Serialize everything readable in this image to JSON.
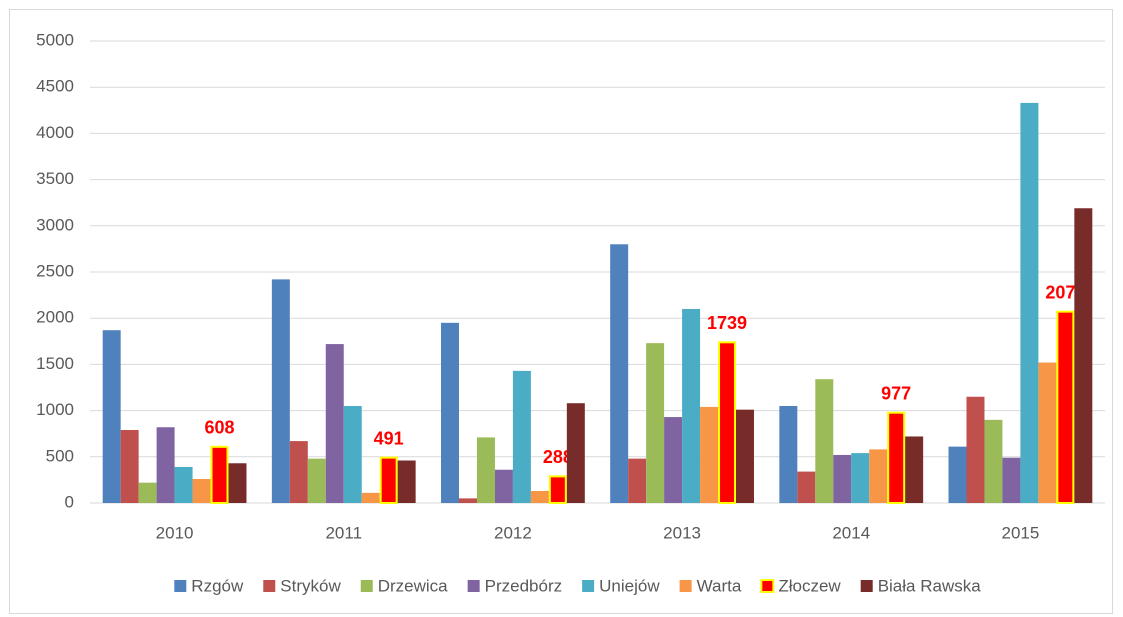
{
  "chart_data": {
    "type": "bar",
    "categories": [
      "2010",
      "2011",
      "2012",
      "2013",
      "2014",
      "2015"
    ],
    "series": [
      {
        "name": "Rzgów",
        "color": "#4f81bd",
        "values": [
          1870,
          2420,
          1950,
          2800,
          1050,
          610
        ]
      },
      {
        "name": "Stryków",
        "color": "#c0504d",
        "values": [
          790,
          670,
          50,
          480,
          340,
          1150
        ]
      },
      {
        "name": "Drzewica",
        "color": "#9bbb59",
        "values": [
          220,
          480,
          710,
          1730,
          1340,
          900
        ]
      },
      {
        "name": "Przedbórz",
        "color": "#8064a2",
        "values": [
          820,
          1720,
          360,
          930,
          520,
          490
        ]
      },
      {
        "name": "Uniejów",
        "color": "#4bacc6",
        "values": [
          390,
          1050,
          1430,
          2100,
          540,
          4330
        ]
      },
      {
        "name": "Warta",
        "color": "#f79646",
        "values": [
          260,
          110,
          130,
          1040,
          580,
          1520
        ]
      },
      {
        "name": "Złoczew",
        "color": "#ff0000",
        "border": "#ffff00",
        "show_labels": true,
        "values": [
          608,
          491,
          288,
          1739,
          977,
          2071
        ]
      },
      {
        "name": "Biała Rawska",
        "color": "#772c2a",
        "values": [
          430,
          460,
          1080,
          1010,
          720,
          3190
        ]
      }
    ],
    "ylim": [
      0,
      5000
    ],
    "yticks": [
      0,
      500,
      1000,
      1500,
      2000,
      2500,
      3000,
      3500,
      4000,
      4500,
      5000
    ],
    "grid": true,
    "legend": "bottom"
  }
}
